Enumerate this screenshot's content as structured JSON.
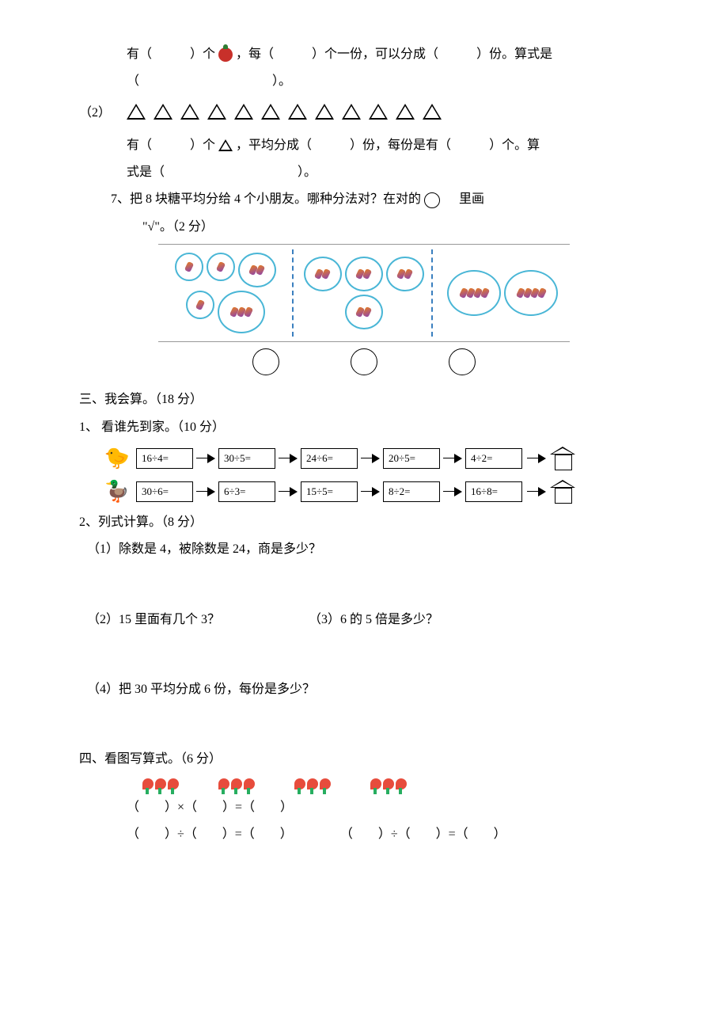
{
  "q_top": {
    "line1_a": "有（",
    "line1_b": "）个",
    "line1_c": "，每（",
    "line1_d": "）个一份，可以分成（",
    "line1_e": "）份。算式是",
    "line2_a": "（",
    "line2_b": "）。"
  },
  "q2": {
    "label": "（2）",
    "triangles": 12,
    "line1_a": "有（",
    "line1_b": "）个",
    "line1_c": "，平均分成（",
    "line1_d": "）份，每份是有（",
    "line1_e": "）个。算",
    "line2_a": "式是（",
    "line2_b": "）。"
  },
  "q7": {
    "text_a": "7、把 8 块糖平均分给 4 个小朋友。哪种分法对？在对的",
    "text_b": "里画",
    "text_c": "\"√\"。（2 分）",
    "groups": [
      {
        "bubbles": [
          1,
          1,
          2,
          1,
          3
        ]
      },
      {
        "bubbles": [
          2,
          2,
          2,
          2
        ]
      },
      {
        "bubbles": [
          4,
          4
        ]
      }
    ]
  },
  "s3": {
    "title": "三、我会算。（18 分）",
    "p1": {
      "title": "1、 看谁先到家。（10 分）",
      "row1": [
        "16÷4=",
        "30÷5=",
        "24÷6=",
        "20÷5=",
        "4÷2="
      ],
      "row2": [
        "30÷6=",
        "6÷3=",
        "15÷5=",
        "8÷2=",
        "16÷8="
      ],
      "animal1": "🐤",
      "animal2": "🦆"
    },
    "p2": {
      "title": "2、列式计算。（8 分）",
      "a": "（1）除数是 4，被除数是 24，商是多少？",
      "b": "（2）15 里面有几个 3？",
      "c": "（3）6 的 5 倍是多少？",
      "d": "（4）把 30 平均分成 6 份，每份是多少？"
    }
  },
  "s4": {
    "title": "四、看图写算式。（6 分）",
    "flower_groups": 4,
    "flowers_per_group": 3,
    "eq1": "（　　）×（　　）=（　　）",
    "eq2a": "（　　）÷（　　）=（　　）",
    "eq2b": "（　　）÷（　　）=（　　）"
  }
}
